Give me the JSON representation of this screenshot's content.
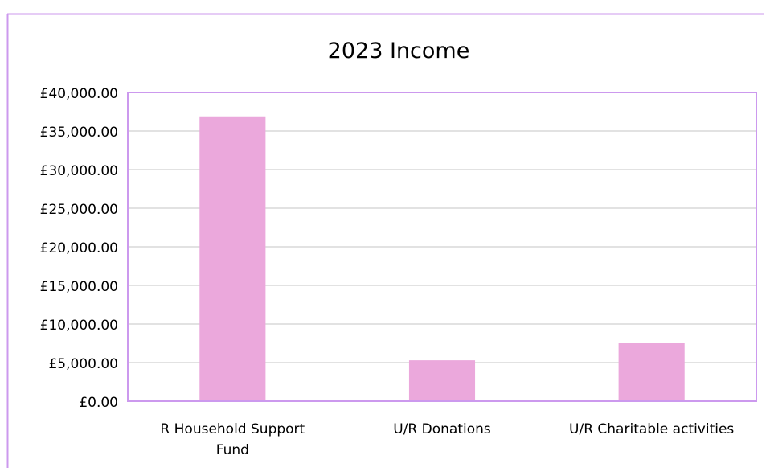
{
  "chart_data": {
    "type": "bar",
    "title": "2023 Income",
    "xlabel": "",
    "ylabel": "",
    "categories": [
      [
        "R Household Support",
        "Fund"
      ],
      [
        "U/R Donations"
      ],
      [
        "U/R Charitable activities"
      ]
    ],
    "values": [
      36900,
      5300,
      7500
    ],
    "ylim": [
      0,
      40000
    ],
    "yticks": [
      0,
      5000,
      10000,
      15000,
      20000,
      25000,
      30000,
      35000,
      40000
    ],
    "ytick_labels": [
      "£0.00",
      "£5,000.00",
      "£10,000.00",
      "£15,000.00",
      "£20,000.00",
      "£25,000.00",
      "£30,000.00",
      "£35,000.00",
      "£40,000.00"
    ],
    "grid": true,
    "legend": "none",
    "colors": {
      "bar": "#eba8dc",
      "border": "#cc99ee",
      "grid": "#d9d9d9"
    }
  }
}
